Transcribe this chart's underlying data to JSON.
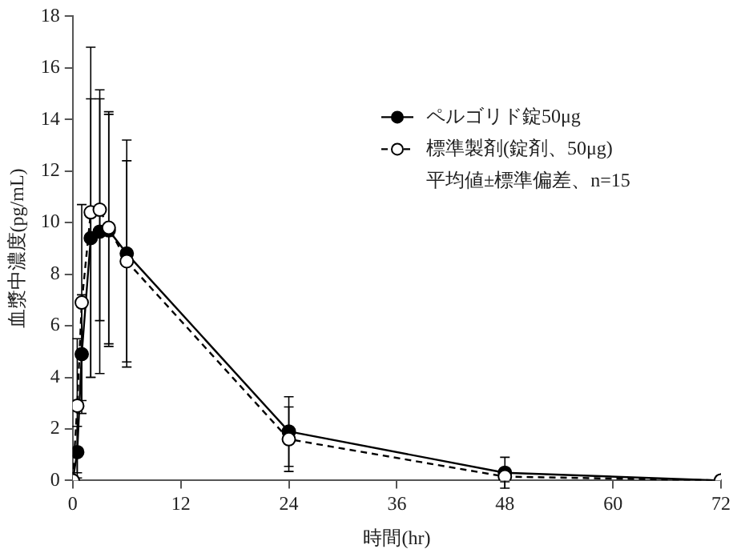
{
  "chart_data": {
    "type": "line",
    "xlabel": "時間(hr)",
    "ylabel": "血漿中濃度(pg/mL)",
    "x": [
      0,
      0.5,
      1,
      2,
      3,
      4,
      6,
      24,
      48,
      72
    ],
    "series": [
      {
        "name": "ペルゴリド錠50μg",
        "color": "#000000",
        "marker": "circle",
        "line_style": "solid",
        "values": [
          0,
          1.1,
          4.9,
          9.4,
          9.65,
          9.7,
          8.8,
          1.9,
          0.3,
          0
        ],
        "errors": [
          null,
          1.0,
          2.3,
          5.4,
          5.5,
          4.5,
          4.4,
          1.35,
          0.6,
          null
        ]
      },
      {
        "name": "標準製剤(錠剤、50μg)",
        "color": "#000000",
        "marker": "circle",
        "line_style": "dashed",
        "values": [
          0,
          2.9,
          6.9,
          10.4,
          10.5,
          9.8,
          8.5,
          1.6,
          0.15,
          0
        ],
        "errors": [
          null,
          2.6,
          3.8,
          6.4,
          4.3,
          4.5,
          3.9,
          1.25,
          0.2,
          null
        ]
      }
    ],
    "xlim": [
      0,
      72
    ],
    "xticks": [
      0,
      12,
      24,
      36,
      48,
      60,
      72
    ],
    "ylim": [
      0,
      18
    ],
    "yticks": [
      0,
      2,
      4,
      6,
      8,
      10,
      12,
      14,
      16,
      18
    ],
    "grid": false,
    "legend": "top right",
    "annotations": [
      "平均値±標準偏差、n=15"
    ]
  }
}
